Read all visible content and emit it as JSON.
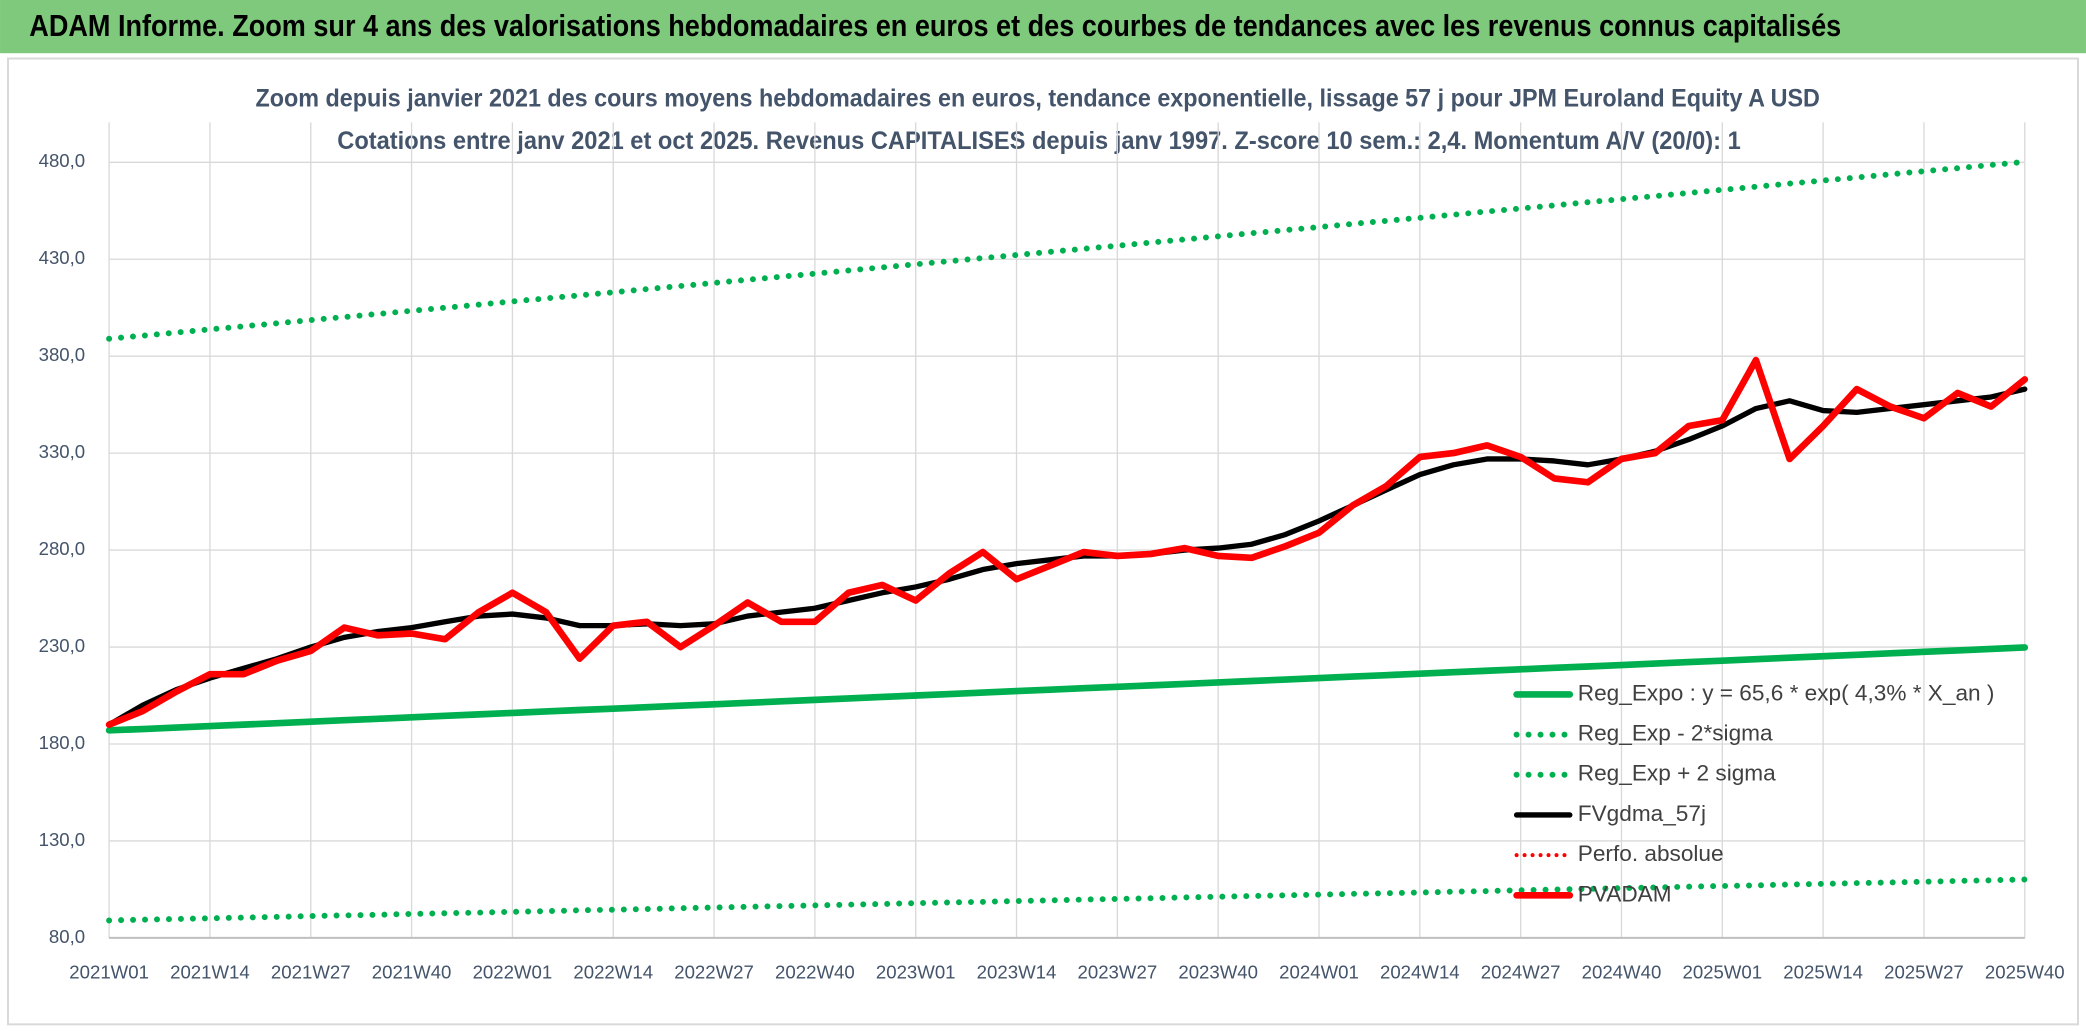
{
  "header": {
    "title": "ADAM Informe. Zoom sur 4 ans des valorisations hebdomadaires en euros et des courbes de tendances avec les revenus connus capitalisés"
  },
  "chart_data": {
    "type": "line",
    "title": "Zoom depuis janvier 2021 des cours moyens hebdomadaires en euros, tendance exponentielle, lissage 57 j pour JPM Euroland Equity A USD",
    "subtitle": "Cotations entre janv 2021 et oct 2025. Revenus CAPITALISES depuis janv 1997. Z-score 10 sem.: 2,4. Momentum A/V (20/0): 1",
    "categories": [
      "2021W01",
      null,
      null,
      "2021W14",
      null,
      null,
      "2021W27",
      null,
      null,
      "2021W40",
      null,
      null,
      "2022W01",
      null,
      null,
      "2022W14",
      null,
      null,
      "2022W27",
      null,
      null,
      "2022W40",
      null,
      null,
      "2023W01",
      null,
      null,
      "2023W14",
      null,
      null,
      "2023W27",
      null,
      null,
      "2023W40",
      null,
      null,
      "2024W01",
      null,
      null,
      "2024W14",
      null,
      null,
      "2024W27",
      null,
      null,
      "2024W40",
      null,
      null,
      "2025W01",
      null,
      null,
      "2025W14",
      null,
      null,
      "2025W27",
      null,
      null,
      "2025W40"
    ],
    "ylim": [
      80,
      480
    ],
    "yticks": [
      {
        "value": 80,
        "label": "80,0"
      },
      {
        "value": 130,
        "label": "130,0"
      },
      {
        "value": 180,
        "label": "180,0"
      },
      {
        "value": 230,
        "label": "230,0"
      },
      {
        "value": 280,
        "label": "280,0"
      },
      {
        "value": 330,
        "label": "330,0"
      },
      {
        "value": 380,
        "label": "380,0"
      },
      {
        "value": 430,
        "label": "430,0"
      },
      {
        "value": 480,
        "label": "480,0"
      }
    ],
    "grid": true,
    "legend": "right",
    "series": [
      {
        "name": "Reg_Expo : y = 65,6 * exp( 4,3% *  X_an )",
        "color": "#00b050",
        "style": "solid",
        "width": 5,
        "values": [
          187,
          187.75,
          188.5,
          189.25,
          190,
          190.75,
          191.5,
          192.25,
          193,
          193.75,
          194.5,
          195.25,
          196,
          196.75,
          197.5,
          198.25,
          199,
          199.75,
          200.5,
          201.25,
          202,
          202.75,
          203.5,
          204.25,
          205,
          205.75,
          206.5,
          207.25,
          208,
          208.75,
          209.5,
          210.25,
          211,
          211.75,
          212.5,
          213.25,
          214,
          214.75,
          215.5,
          216.25,
          217,
          217.75,
          218.5,
          219.25,
          220,
          220.75,
          221.5,
          222.25,
          223,
          223.75,
          224.5,
          225.25,
          226,
          226.75,
          227.5,
          228.25,
          229,
          229.75
        ]
      },
      {
        "name": "Reg_Exp - 2*sigma",
        "color": "#00b050",
        "style": "dotted",
        "width": 4.5,
        "values": [
          89,
          89.37,
          89.74,
          90.11,
          90.48,
          90.85,
          91.22,
          91.59,
          91.96,
          92.33,
          92.7,
          93.07,
          93.44,
          93.81,
          94.18,
          94.55,
          94.92,
          95.29,
          95.66,
          96.03,
          96.4,
          96.77,
          97.14,
          97.51,
          97.88,
          98.25,
          98.62,
          98.99,
          99.36,
          99.73,
          100.1,
          100.47,
          100.84,
          101.21,
          101.58,
          101.95,
          102.32,
          102.69,
          103.06,
          103.43,
          103.8,
          104.17,
          104.54,
          104.91,
          105.28,
          105.65,
          106.02,
          106.39,
          106.76,
          107.13,
          107.5,
          107.87,
          108.24,
          108.61,
          108.98,
          109.35,
          109.72,
          110.09
        ]
      },
      {
        "name": "Reg_Exp + 2 sigma",
        "color": "#00b050",
        "style": "dotted",
        "width": 4.5,
        "values": [
          389,
          390.6,
          392.2,
          393.8,
          395.4,
          397,
          398.6,
          400.2,
          401.8,
          403.4,
          405,
          406.6,
          408.2,
          409.8,
          411.4,
          413,
          414.6,
          416.2,
          417.8,
          419.4,
          421,
          422.6,
          424.2,
          425.8,
          427.4,
          429,
          430.6,
          432.2,
          433.8,
          435.4,
          437,
          438.6,
          440.2,
          441.8,
          443.4,
          445,
          446.6,
          448.2,
          449.8,
          451.4,
          453,
          454.6,
          456.2,
          457.8,
          459.4,
          461,
          462.6,
          464.2,
          465.8,
          467.4,
          469,
          470.6,
          472.2,
          473.8,
          475.4,
          477,
          478.6,
          480.2
        ]
      },
      {
        "name": "FVgdma_57j",
        "color": "#000000",
        "style": "solid",
        "width": 4,
        "values": [
          190,
          200,
          208,
          214,
          219,
          224,
          230,
          235,
          238,
          240,
          243,
          246,
          247,
          245,
          241,
          241,
          242,
          241,
          242,
          246,
          248,
          250,
          254,
          258,
          261,
          265,
          270,
          273,
          275,
          277,
          277,
          278,
          280,
          281,
          283,
          288,
          295,
          303,
          311,
          319,
          324,
          327,
          327,
          326,
          324,
          327,
          331,
          337,
          344,
          353,
          357,
          352,
          351,
          353,
          355,
          357,
          359,
          363
        ]
      },
      {
        "name": "Perfo. absolue",
        "color": "#ff0000",
        "style": "dotted",
        "width": 3,
        "values": [
          null,
          null,
          null,
          null,
          null,
          null,
          null,
          null,
          null,
          null,
          null,
          null,
          null,
          null,
          null,
          null,
          null,
          null,
          null,
          null,
          null,
          null,
          null,
          null,
          null,
          null,
          null,
          null,
          null,
          null,
          null,
          null,
          null,
          null,
          null,
          null,
          null,
          null,
          null,
          null,
          null,
          null,
          null,
          null,
          null,
          null,
          null,
          null,
          null,
          null,
          null,
          null,
          null,
          null,
          null,
          null,
          null,
          null
        ]
      },
      {
        "name": "PVADAM",
        "color": "#ff0000",
        "style": "solid",
        "width": 5,
        "values": [
          190,
          197,
          207,
          216,
          216,
          223,
          228,
          240,
          236,
          237,
          234,
          248,
          258,
          248,
          224,
          241,
          243,
          230,
          241,
          253,
          243,
          243,
          258,
          262,
          254,
          268,
          279,
          265,
          272,
          279,
          277,
          278,
          281,
          277,
          276,
          282,
          289,
          303,
          313,
          328,
          330,
          334,
          328,
          317,
          315,
          327,
          330,
          344,
          347,
          378,
          327,
          344,
          363,
          354,
          348,
          361,
          354,
          368
        ]
      }
    ]
  }
}
